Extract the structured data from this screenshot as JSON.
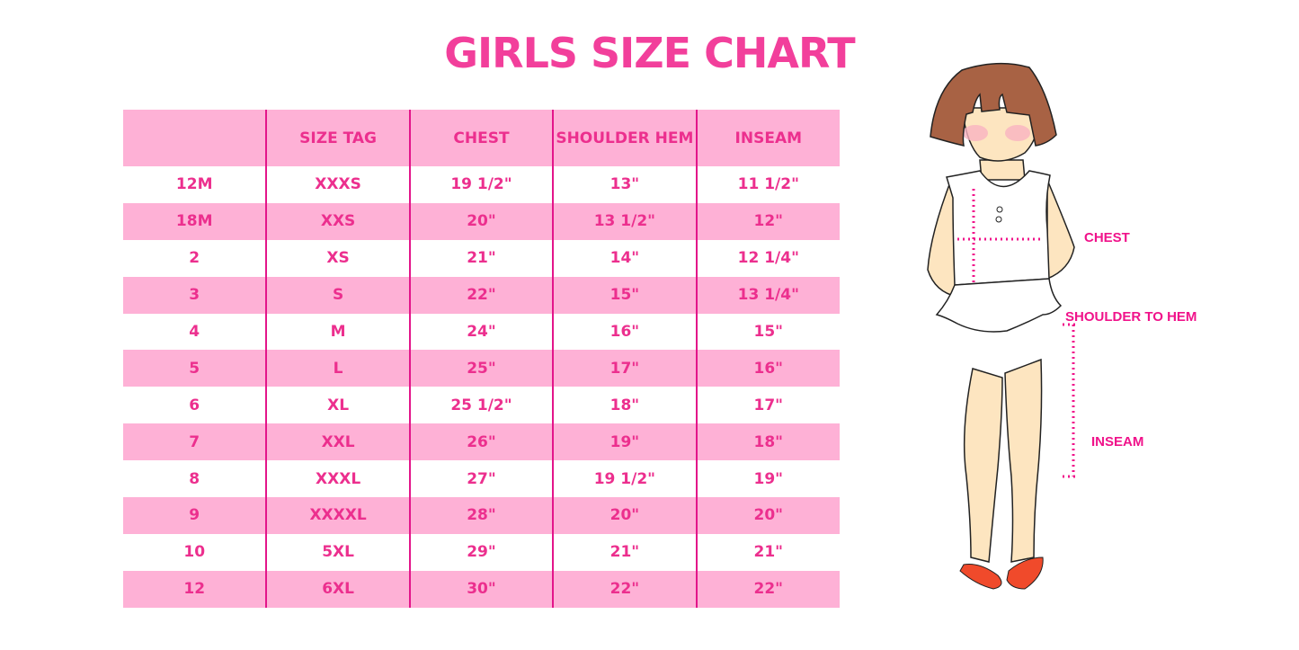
{
  "title": "GIRLS SIZE CHART",
  "table": {
    "headers": [
      "",
      "SIZE TAG",
      "CHEST",
      "SHOULDER HEM",
      "INSEAM"
    ],
    "rows": [
      [
        "12M",
        "XXXS",
        "19 1/2\"",
        "13\"",
        "11 1/2\""
      ],
      [
        "18M",
        "XXS",
        "20\"",
        "13 1/2\"",
        "12\""
      ],
      [
        "2",
        "XS",
        "21\"",
        "14\"",
        "12 1/4\""
      ],
      [
        "3",
        "S",
        "22\"",
        "15\"",
        "13 1/4\""
      ],
      [
        "4",
        "M",
        "24\"",
        "16\"",
        "15\""
      ],
      [
        "5",
        "L",
        "25\"",
        "17\"",
        "16\""
      ],
      [
        "6",
        "XL",
        "25 1/2\"",
        "18\"",
        "17\""
      ],
      [
        "7",
        "XXL",
        "26\"",
        "19\"",
        "18\""
      ],
      [
        "8",
        "XXXL",
        "27\"",
        "19 1/2\"",
        "19\""
      ],
      [
        "9",
        "XXXXL",
        "28\"",
        "20\"",
        "20\""
      ],
      [
        "10",
        "5XL",
        "29\"",
        "21\"",
        "21\""
      ],
      [
        "12",
        "6XL",
        "30\"",
        "22\"",
        "22\""
      ]
    ]
  },
  "figure": {
    "labels": {
      "chest": "CHEST",
      "shoulder_to_hem": "SHOULDER TO HEM",
      "inseam": "INSEAM"
    }
  },
  "colors": {
    "accent": "#ec2f8e",
    "row_pink": "#feb1d6",
    "divider": "#e3158a"
  }
}
